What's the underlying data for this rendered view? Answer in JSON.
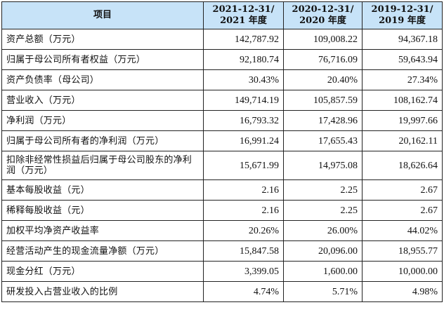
{
  "table": {
    "header": {
      "item": "项目",
      "periods": [
        {
          "line1": "2021-12-31/",
          "line2": "2021 年度"
        },
        {
          "line1": "2020-12-31/",
          "line2": "2020 年度"
        },
        {
          "line1": "2019-12-31/",
          "line2": "2019 年度"
        }
      ]
    },
    "rows": [
      {
        "label": "资产总额（万元）",
        "values": [
          "142,787.92",
          "109,008.22",
          "94,367.18"
        ]
      },
      {
        "label": "归属于母公司所有者权益（万元）",
        "values": [
          "92,180.74",
          "76,716.09",
          "59,643.94"
        ]
      },
      {
        "label": "资产负债率（母公司）",
        "values": [
          "30.43%",
          "20.40%",
          "27.34%"
        ]
      },
      {
        "label": "营业收入（万元）",
        "values": [
          "149,714.19",
          "105,857.59",
          "108,162.74"
        ]
      },
      {
        "label": "净利润（万元）",
        "values": [
          "16,793.32",
          "17,428.96",
          "19,997.66"
        ]
      },
      {
        "label": "归属于母公司所有者的净利润（万元）",
        "values": [
          "16,991.24",
          "17,655.43",
          "20,162.11"
        ]
      },
      {
        "label": "扣除非经常性损益后归属于母公司股东的净利润（万元）",
        "values": [
          "15,671.99",
          "14,975.08",
          "18,626.64"
        ]
      },
      {
        "label": "基本每股收益（元）",
        "values": [
          "2.16",
          "2.25",
          "2.67"
        ]
      },
      {
        "label": "稀释每股收益（元）",
        "values": [
          "2.16",
          "2.25",
          "2.67"
        ]
      },
      {
        "label": "加权平均净资产收益率",
        "values": [
          "20.26%",
          "26.00%",
          "44.02%"
        ]
      },
      {
        "label": "经营活动产生的现金流量净额（万元）",
        "values": [
          "15,847.58",
          "20,096.00",
          "18,955.77"
        ]
      },
      {
        "label": "现金分红（万元）",
        "values": [
          "3,399.05",
          "1,600.00",
          "10,000.00"
        ]
      },
      {
        "label": "研发投入占营业收入的比例",
        "values": [
          "4.74%",
          "5.71%",
          "4.98%"
        ]
      }
    ],
    "colors": {
      "header_bg": "#c7e3f8",
      "border": "#222222"
    }
  }
}
